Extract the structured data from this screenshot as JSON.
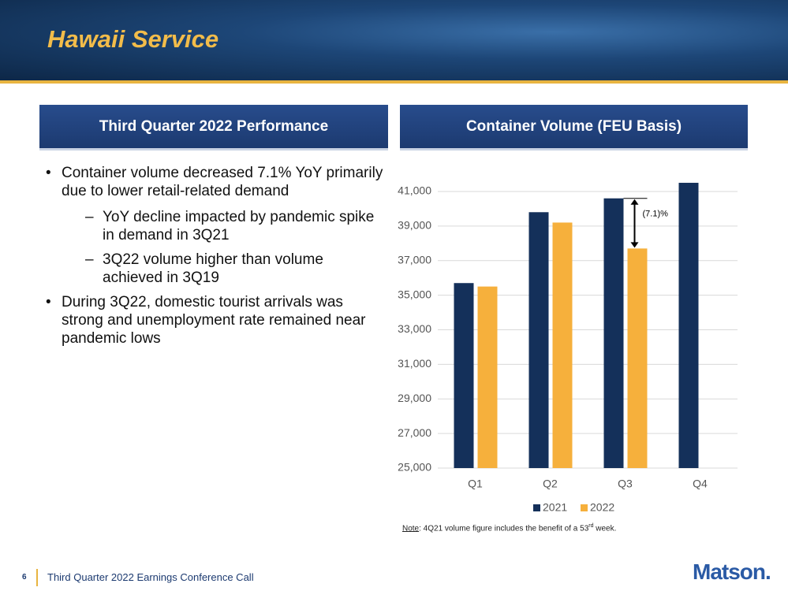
{
  "header": {
    "title": "Hawaii Service"
  },
  "left": {
    "heading": "Third Quarter 2022 Performance",
    "bullets": [
      {
        "text": "Container volume decreased 7.1% YoY primarily due to lower retail-related demand",
        "sub": [
          "YoY decline impacted by pandemic spike in demand in 3Q21",
          "3Q22 volume higher than volume achieved in 3Q19"
        ]
      },
      {
        "text": "During 3Q22, domestic tourist arrivals was strong and unemployment rate remained near pandemic lows",
        "sub": []
      }
    ]
  },
  "right": {
    "heading": "Container Volume (FEU Basis)"
  },
  "chart_data": {
    "type": "bar",
    "categories": [
      "Q1",
      "Q2",
      "Q3",
      "Q4"
    ],
    "series": [
      {
        "name": "2021",
        "color": "#14305a",
        "values": [
          35700,
          39800,
          40600,
          41500
        ]
      },
      {
        "name": "2022",
        "color": "#f6b03c",
        "values": [
          35500,
          39200,
          37700,
          null
        ]
      }
    ],
    "ylim": [
      25000,
      42000
    ],
    "yticks": [
      {
        "value": 25000,
        "label": "25,000"
      },
      {
        "value": 27000,
        "label": "27,000"
      },
      {
        "value": 29000,
        "label": "29,000"
      },
      {
        "value": 31000,
        "label": "31,000"
      },
      {
        "value": 33000,
        "label": "33,000"
      },
      {
        "value": 35000,
        "label": "35,000"
      },
      {
        "value": 37000,
        "label": "37,000"
      },
      {
        "value": 39000,
        "label": "39,000"
      },
      {
        "value": 41000,
        "label": "41,000"
      }
    ],
    "grid": true,
    "legend": "bottom",
    "annotation": "(7.1)%"
  },
  "note": {
    "label": "Note",
    "text": ":  4Q21 volume figure includes the benefit of a 53",
    "sup": "rd",
    "tail": " week."
  },
  "footer": {
    "page": "6",
    "text": "Third Quarter 2022 Earnings Conference Call",
    "logo": "Matson."
  }
}
